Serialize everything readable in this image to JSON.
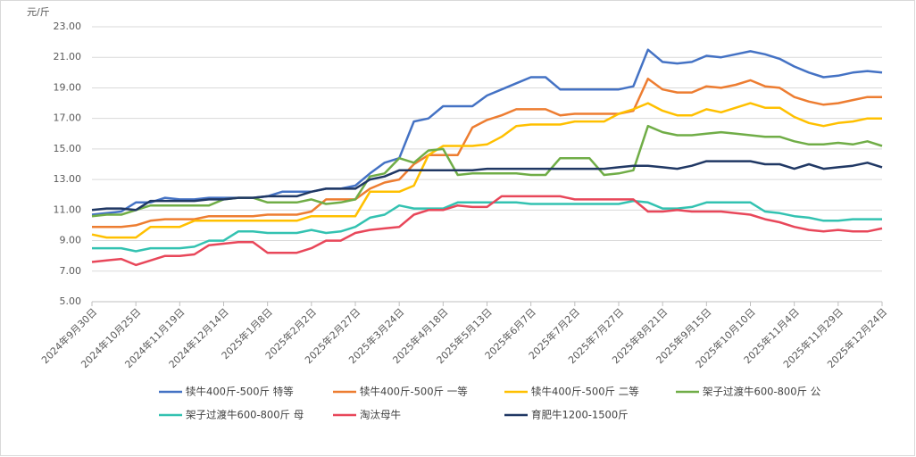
{
  "chart_data": {
    "type": "line",
    "y_label": "元/斤",
    "categories": [
      "2024年9月30日",
      null,
      null,
      "2024年10月25日",
      null,
      null,
      "2024年11月19日",
      null,
      null,
      "2024年12月14日",
      null,
      null,
      "2025年1月8日",
      null,
      null,
      "2025年2月2日",
      null,
      null,
      "2025年2月27日",
      null,
      null,
      "2025年3月24日",
      null,
      null,
      "2025年4月18日",
      null,
      null,
      "2025年5月13日",
      null,
      null,
      "2025年6月7日",
      null,
      null,
      "2025年7月2日",
      null,
      null,
      "2025年7月27日",
      null,
      null,
      "2025年8月21日",
      null,
      null,
      "2025年9月15日",
      null,
      null,
      "2025年10月10日",
      null,
      null,
      "2025年11月4日",
      null,
      null,
      "2025年11月29日",
      null,
      null,
      "2025年12月24日"
    ],
    "ylim": [
      5,
      23
    ],
    "yticks": [
      {
        "value": 5,
        "label": "5.00"
      },
      {
        "value": 7,
        "label": "7.00"
      },
      {
        "value": 9,
        "label": "9.00"
      },
      {
        "value": 11,
        "label": "11.00"
      },
      {
        "value": 13,
        "label": "13.00"
      },
      {
        "value": 15,
        "label": "15.00"
      },
      {
        "value": 17,
        "label": "17.00"
      },
      {
        "value": 19,
        "label": "19.00"
      },
      {
        "value": 21,
        "label": "21.00"
      },
      {
        "value": 23,
        "label": "23.00"
      }
    ],
    "grid": true,
    "legend": "bottom",
    "series": [
      {
        "name": "犊牛400斤-500斤 特等",
        "color": "#4472c4",
        "values": [
          10.7,
          10.8,
          10.9,
          11.5,
          11.5,
          11.8,
          11.7,
          11.7,
          11.8,
          11.8,
          11.8,
          11.8,
          11.9,
          12.2,
          12.2,
          12.2,
          12.4,
          12.4,
          12.6,
          13.4,
          14.1,
          14.4,
          16.8,
          17.0,
          17.8,
          17.8,
          17.8,
          18.5,
          18.9,
          19.3,
          19.7,
          19.7,
          18.9,
          18.9,
          18.9,
          18.9,
          18.9,
          19.1,
          21.5,
          20.7,
          20.6,
          20.7,
          21.1,
          21.0,
          21.2,
          21.4,
          21.2,
          20.9,
          20.4,
          20.0,
          19.7,
          19.8,
          20.0,
          20.1,
          20.0
        ]
      },
      {
        "name": "犊牛400斤-500斤 一等",
        "color": "#ed7d31",
        "values": [
          9.9,
          9.9,
          9.9,
          10.0,
          10.3,
          10.4,
          10.4,
          10.4,
          10.6,
          10.6,
          10.6,
          10.6,
          10.7,
          10.7,
          10.7,
          10.9,
          11.7,
          11.7,
          11.7,
          12.4,
          12.8,
          13.0,
          14.0,
          14.6,
          14.6,
          14.6,
          16.4,
          16.9,
          17.2,
          17.6,
          17.6,
          17.6,
          17.2,
          17.3,
          17.3,
          17.3,
          17.3,
          17.5,
          19.6,
          18.9,
          18.7,
          18.7,
          19.1,
          19.0,
          19.2,
          19.5,
          19.1,
          19.0,
          18.4,
          18.1,
          17.9,
          18.0,
          18.2,
          18.4,
          18.4
        ]
      },
      {
        "name": "犊牛400斤-500斤 二等",
        "color": "#ffc000",
        "values": [
          9.4,
          9.2,
          9.2,
          9.2,
          9.9,
          9.9,
          9.9,
          10.3,
          10.3,
          10.3,
          10.3,
          10.3,
          10.3,
          10.3,
          10.3,
          10.6,
          10.6,
          10.6,
          10.6,
          12.2,
          12.2,
          12.2,
          12.6,
          14.6,
          15.2,
          15.2,
          15.2,
          15.3,
          15.8,
          16.5,
          16.6,
          16.6,
          16.6,
          16.8,
          16.8,
          16.8,
          17.3,
          17.6,
          18.0,
          17.5,
          17.2,
          17.2,
          17.6,
          17.4,
          17.7,
          18.0,
          17.7,
          17.7,
          17.1,
          16.7,
          16.5,
          16.7,
          16.8,
          17.0,
          17.0
        ]
      },
      {
        "name": "架子过渡牛600-800斤 公",
        "color": "#70ad47",
        "values": [
          10.6,
          10.7,
          10.7,
          11.0,
          11.3,
          11.3,
          11.3,
          11.3,
          11.3,
          11.7,
          11.8,
          11.8,
          11.5,
          11.5,
          11.5,
          11.7,
          11.4,
          11.5,
          11.7,
          13.2,
          13.4,
          14.4,
          14.1,
          14.9,
          15.0,
          13.3,
          13.4,
          13.4,
          13.4,
          13.4,
          13.3,
          13.3,
          14.4,
          14.4,
          14.4,
          13.3,
          13.4,
          13.6,
          16.5,
          16.1,
          15.9,
          15.9,
          16.0,
          16.1,
          16.0,
          15.9,
          15.8,
          15.8,
          15.5,
          15.3,
          15.3,
          15.4,
          15.3,
          15.5,
          15.2
        ]
      },
      {
        "name": "架子过渡牛600-800斤 母",
        "color": "#33c2b1",
        "values": [
          8.5,
          8.5,
          8.5,
          8.3,
          8.5,
          8.5,
          8.5,
          8.6,
          9.0,
          9.0,
          9.6,
          9.6,
          9.5,
          9.5,
          9.5,
          9.7,
          9.5,
          9.6,
          9.9,
          10.5,
          10.7,
          11.3,
          11.1,
          11.1,
          11.1,
          11.5,
          11.5,
          11.5,
          11.5,
          11.5,
          11.4,
          11.4,
          11.4,
          11.4,
          11.4,
          11.4,
          11.4,
          11.6,
          11.5,
          11.1,
          11.1,
          11.2,
          11.5,
          11.5,
          11.5,
          11.5,
          10.9,
          10.8,
          10.6,
          10.5,
          10.3,
          10.3,
          10.4,
          10.4,
          10.4
        ]
      },
      {
        "name": "淘汰母牛",
        "color": "#e8475a",
        "values": [
          7.6,
          7.7,
          7.8,
          7.4,
          7.7,
          8.0,
          8.0,
          8.1,
          8.7,
          8.8,
          8.9,
          8.9,
          8.2,
          8.2,
          8.2,
          8.5,
          9.0,
          9.0,
          9.5,
          9.7,
          9.8,
          9.9,
          10.7,
          11.0,
          11.0,
          11.3,
          11.2,
          11.2,
          11.9,
          11.9,
          11.9,
          11.9,
          11.9,
          11.7,
          11.7,
          11.7,
          11.7,
          11.7,
          10.9,
          10.9,
          11.0,
          10.9,
          10.9,
          10.9,
          10.8,
          10.7,
          10.4,
          10.2,
          9.9,
          9.7,
          9.6,
          9.7,
          9.6,
          9.6,
          9.8
        ]
      },
      {
        "name": "育肥牛1200-1500斤",
        "color": "#203864",
        "values": [
          11.0,
          11.1,
          11.1,
          11.0,
          11.6,
          11.6,
          11.6,
          11.6,
          11.7,
          11.7,
          11.8,
          11.8,
          11.9,
          11.9,
          11.9,
          12.2,
          12.4,
          12.4,
          12.4,
          13.0,
          13.2,
          13.6,
          13.6,
          13.6,
          13.6,
          13.6,
          13.6,
          13.7,
          13.7,
          13.7,
          13.7,
          13.7,
          13.7,
          13.7,
          13.7,
          13.7,
          13.8,
          13.9,
          13.9,
          13.8,
          13.7,
          13.9,
          14.2,
          14.2,
          14.2,
          14.2,
          14.0,
          14.0,
          13.7,
          14.0,
          13.7,
          13.8,
          13.9,
          14.1,
          13.8
        ]
      }
    ]
  }
}
